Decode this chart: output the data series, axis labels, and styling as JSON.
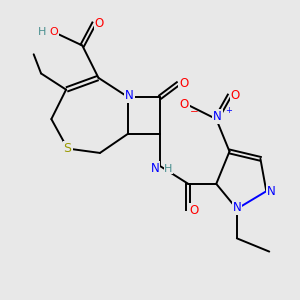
{
  "bg_color": "#e8e8e8",
  "atom_colors": {
    "C": "#000000",
    "N": "#0000ff",
    "O": "#ff0000",
    "S": "#999900",
    "H": "#4a9090"
  },
  "bond_color": "#000000",
  "bond_lw": 1.4,
  "font_size": 7.5
}
